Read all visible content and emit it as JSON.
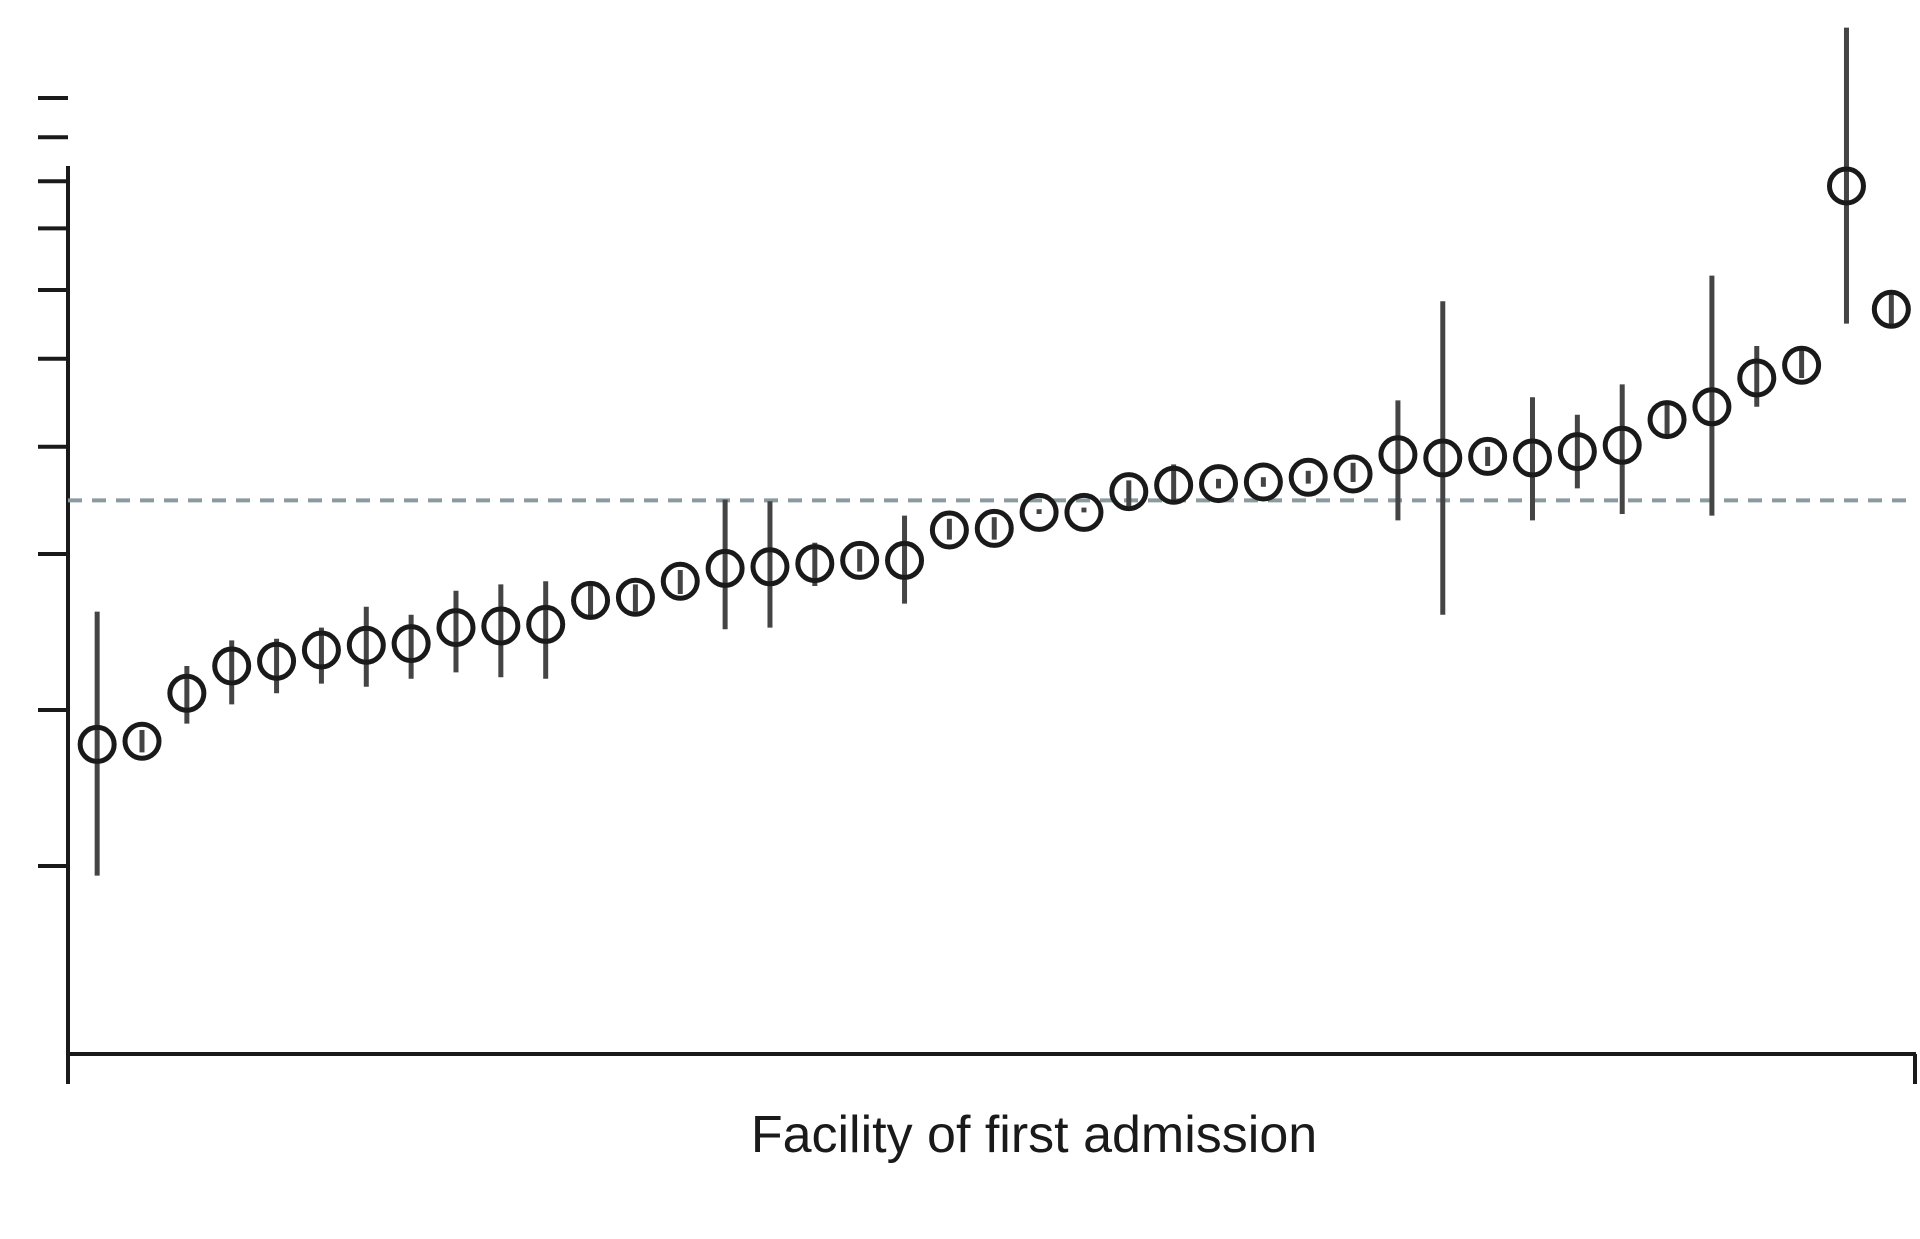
{
  "chart_data": {
    "type": "scatter",
    "title": "",
    "xlabel": "Facility of first admission",
    "ylabel": "",
    "grid": false,
    "legend": "none",
    "reference_line": {
      "style": "dashed",
      "color": "#8a9ba0",
      "y": 0.557
    },
    "marker": {
      "shape": "open-circle",
      "color": "#1a1a1a"
    },
    "errorbar_color": "#444444",
    "axis_color": "#1a1a1a",
    "xlim": [
      0.35,
      41.55
    ],
    "ylim": [
      0,
      1
    ],
    "x": [
      1,
      2,
      3,
      4,
      5,
      6,
      7,
      8,
      9,
      10,
      11,
      12,
      13,
      14,
      15,
      16,
      17,
      18,
      19,
      20,
      21,
      22,
      23,
      24,
      25,
      26,
      27,
      28,
      29,
      30,
      31,
      32,
      33,
      34,
      35,
      36,
      37,
      38,
      39,
      40,
      41
    ],
    "y": [
      0.252,
      0.256,
      0.316,
      0.35,
      0.356,
      0.37,
      0.376,
      0.378,
      0.398,
      0.4,
      0.402,
      0.432,
      0.436,
      0.456,
      0.472,
      0.474,
      0.478,
      0.482,
      0.482,
      0.52,
      0.522,
      0.542,
      0.542,
      0.568,
      0.576,
      0.578,
      0.58,
      0.586,
      0.59,
      0.614,
      0.61,
      0.612,
      0.61,
      0.618,
      0.626,
      0.658,
      0.674,
      0.71,
      0.726,
      0.95,
      0.796
    ],
    "y_lower": [
      0.088,
      0.242,
      0.278,
      0.302,
      0.316,
      0.328,
      0.324,
      0.334,
      0.342,
      0.336,
      0.334,
      0.408,
      0.418,
      0.44,
      0.396,
      0.398,
      0.45,
      0.468,
      0.428,
      0.508,
      0.508,
      0.54,
      0.542,
      0.55,
      0.556,
      0.572,
      0.574,
      0.578,
      0.58,
      0.532,
      0.414,
      0.6,
      0.532,
      0.572,
      0.54,
      0.636,
      0.538,
      0.674,
      0.71,
      0.778,
      0.774
    ],
    "y_upper": [
      0.418,
      0.27,
      0.35,
      0.382,
      0.384,
      0.398,
      0.424,
      0.414,
      0.444,
      0.452,
      0.456,
      0.456,
      0.452,
      0.47,
      0.558,
      0.556,
      0.504,
      0.496,
      0.538,
      0.534,
      0.536,
      0.546,
      0.548,
      0.582,
      0.602,
      0.584,
      0.586,
      0.594,
      0.604,
      0.682,
      0.806,
      0.624,
      0.686,
      0.664,
      0.702,
      0.68,
      0.838,
      0.75,
      0.746,
      1.148,
      0.816
    ],
    "yticks": [
      0.1,
      0.295,
      0.49,
      0.624,
      0.734,
      0.82,
      0.897,
      0.956,
      1.011,
      1.06
    ]
  }
}
